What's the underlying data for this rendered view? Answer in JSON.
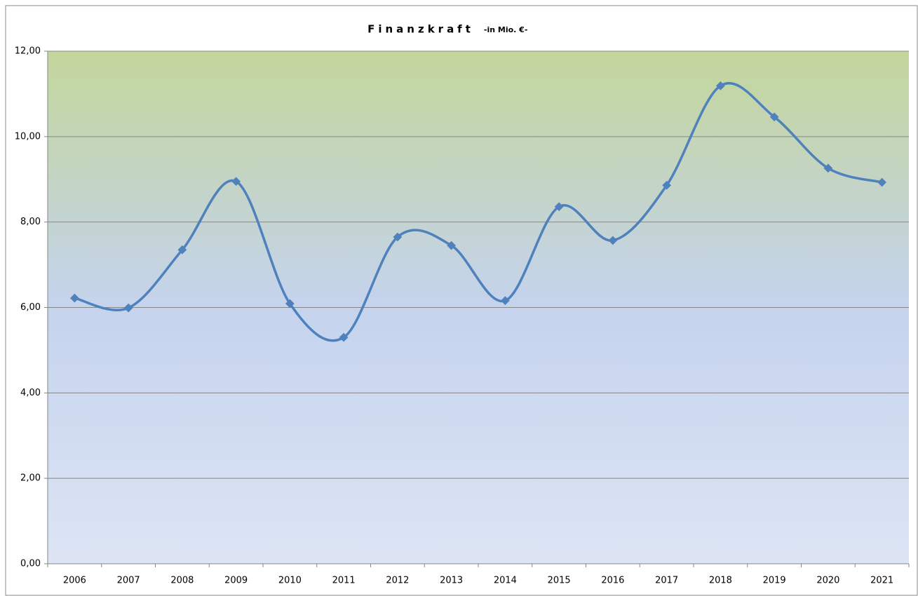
{
  "chart_data": {
    "type": "line",
    "title": "Finanzkraft",
    "subtitle": "-in Mio. €-",
    "categories": [
      "2006",
      "2007",
      "2008",
      "2009",
      "2010",
      "2011",
      "2012",
      "2013",
      "2014",
      "2015",
      "2016",
      "2017",
      "2018",
      "2019",
      "2020",
      "2021"
    ],
    "series": [
      {
        "name": "Finanzkraft",
        "color": "#4f81bd",
        "values": [
          6.22,
          5.99,
          7.35,
          8.95,
          6.09,
          5.3,
          7.65,
          7.45,
          6.16,
          8.36,
          7.57,
          8.86,
          11.19,
          10.46,
          9.26,
          8.93
        ]
      }
    ],
    "ylim": [
      0,
      12
    ],
    "yticks": [
      {
        "value": 0,
        "label": "0,00"
      },
      {
        "value": 2,
        "label": "2,00"
      },
      {
        "value": 4,
        "label": "4,00"
      },
      {
        "value": 6,
        "label": "6,00"
      },
      {
        "value": 8,
        "label": "8,00"
      },
      {
        "value": 10,
        "label": "10,00"
      },
      {
        "value": 12,
        "label": "12,00"
      }
    ],
    "grid": true,
    "smooth": true
  }
}
